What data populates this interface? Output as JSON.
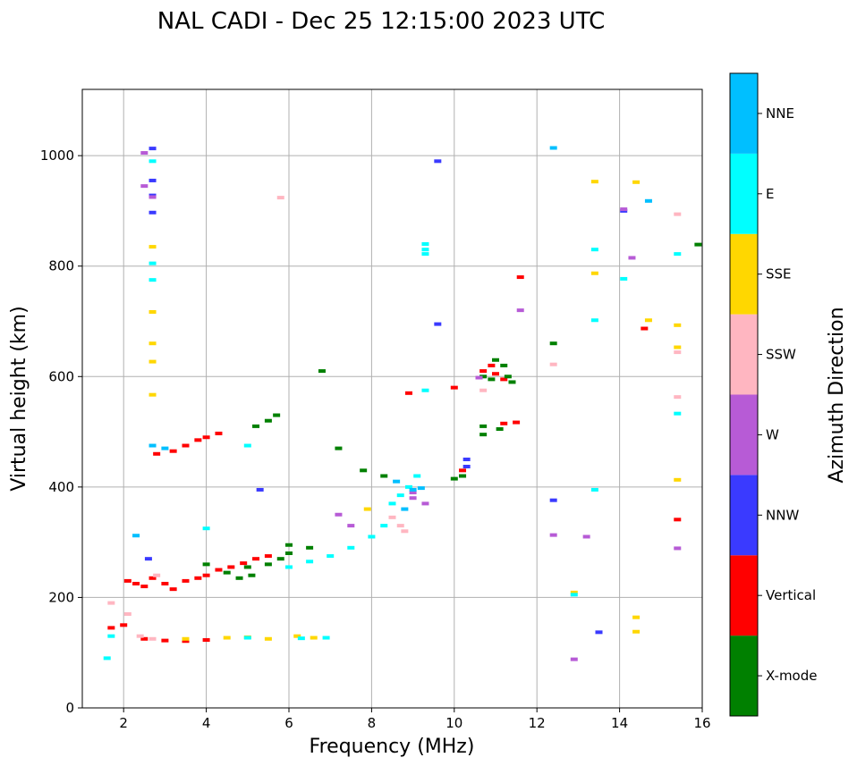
{
  "chart_data": {
    "type": "scatter",
    "title": "NAL CADI - Dec 25 12:15:00 2023 UTC",
    "xlabel": "Frequency (MHz)",
    "ylabel": "Virtual height (km)",
    "xlim": [
      1,
      16
    ],
    "ylim": [
      0,
      1120
    ],
    "xticks": [
      2,
      4,
      6,
      8,
      10,
      12,
      14,
      16
    ],
    "yticks": [
      0,
      200,
      400,
      600,
      800,
      1000
    ],
    "grid": true,
    "colorbar": {
      "label": "Azimuth Direction",
      "categories": [
        {
          "name": "X-mode",
          "color": "#008000"
        },
        {
          "name": "Vertical",
          "color": "#ff0000"
        },
        {
          "name": "NNW",
          "color": "#3a3aff"
        },
        {
          "name": "W",
          "color": "#b75bd6"
        },
        {
          "name": "SSW",
          "color": "#ffb6c1"
        },
        {
          "name": "SSE",
          "color": "#ffd700"
        },
        {
          "name": "E",
          "color": "#00ffff"
        },
        {
          "name": "NNE",
          "color": "#00bfff"
        }
      ]
    },
    "series": [
      {
        "name": "Vertical",
        "points": [
          [
            2.1,
            230
          ],
          [
            2.3,
            225
          ],
          [
            2.5,
            220
          ],
          [
            2.7,
            235
          ],
          [
            3.0,
            225
          ],
          [
            3.2,
            215
          ],
          [
            3.5,
            230
          ],
          [
            3.8,
            235
          ],
          [
            4.0,
            240
          ],
          [
            4.3,
            250
          ],
          [
            4.6,
            255
          ],
          [
            4.9,
            262
          ],
          [
            5.2,
            270
          ],
          [
            5.5,
            275
          ],
          [
            2.8,
            460
          ],
          [
            3.2,
            465
          ],
          [
            3.5,
            475
          ],
          [
            3.8,
            485
          ],
          [
            4.0,
            490
          ],
          [
            4.3,
            497
          ],
          [
            1.7,
            145
          ],
          [
            2.0,
            150
          ],
          [
            2.5,
            125
          ],
          [
            3.0,
            122
          ],
          [
            3.5,
            121
          ],
          [
            4.0,
            123
          ],
          [
            8.9,
            570
          ],
          [
            10.2,
            430
          ],
          [
            10.2,
            420
          ],
          [
            10.7,
            610
          ],
          [
            10.9,
            620
          ],
          [
            11.0,
            605
          ],
          [
            11.2,
            595
          ],
          [
            11.2,
            515
          ],
          [
            11.5,
            517
          ],
          [
            11.6,
            780
          ],
          [
            14.6,
            687
          ],
          [
            15.4,
            341
          ],
          [
            10.0,
            580
          ]
        ]
      },
      {
        "name": "X-mode",
        "points": [
          [
            4.0,
            260
          ],
          [
            4.5,
            245
          ],
          [
            5.0,
            255
          ],
          [
            5.5,
            260
          ],
          [
            5.8,
            270
          ],
          [
            6.0,
            280
          ],
          [
            6.0,
            295
          ],
          [
            6.5,
            290
          ],
          [
            6.8,
            610
          ],
          [
            5.2,
            510
          ],
          [
            5.5,
            520
          ],
          [
            5.7,
            530
          ],
          [
            7.2,
            470
          ],
          [
            7.8,
            430
          ],
          [
            8.3,
            420
          ],
          [
            10.0,
            415
          ],
          [
            10.2,
            420
          ],
          [
            10.7,
            600
          ],
          [
            10.9,
            595
          ],
          [
            11.0,
            630
          ],
          [
            11.2,
            620
          ],
          [
            11.3,
            600
          ],
          [
            11.4,
            590
          ],
          [
            10.7,
            510
          ],
          [
            10.7,
            495
          ],
          [
            11.1,
            505
          ],
          [
            12.4,
            660
          ],
          [
            15.9,
            839
          ],
          [
            4.8,
            235
          ],
          [
            5.1,
            240
          ]
        ]
      },
      {
        "name": "NNW",
        "points": [
          [
            2.7,
            1013
          ],
          [
            2.7,
            955
          ],
          [
            2.7,
            928
          ],
          [
            2.7,
            897
          ],
          [
            9.6,
            990
          ],
          [
            9.6,
            695
          ],
          [
            10.3,
            450
          ],
          [
            10.3,
            437
          ],
          [
            12.4,
            376
          ],
          [
            13.5,
            137
          ],
          [
            14.1,
            900
          ],
          [
            5.3,
            395
          ],
          [
            2.6,
            270
          ]
        ]
      },
      {
        "name": "W",
        "points": [
          [
            2.5,
            1005
          ],
          [
            2.5,
            945
          ],
          [
            2.7,
            925
          ],
          [
            9.0,
            390
          ],
          [
            9.0,
            380
          ],
          [
            9.3,
            370
          ],
          [
            12.4,
            313
          ],
          [
            13.2,
            310
          ],
          [
            12.9,
            88
          ],
          [
            14.3,
            815
          ],
          [
            14.1,
            903
          ],
          [
            11.6,
            720
          ],
          [
            10.6,
            598
          ],
          [
            15.4,
            289
          ],
          [
            7.2,
            350
          ],
          [
            7.5,
            330
          ]
        ]
      },
      {
        "name": "SSW",
        "points": [
          [
            1.7,
            190
          ],
          [
            2.1,
            170
          ],
          [
            2.4,
            130
          ],
          [
            2.7,
            125
          ],
          [
            8.7,
            330
          ],
          [
            8.8,
            320
          ],
          [
            8.5,
            345
          ],
          [
            10.7,
            575
          ],
          [
            12.4,
            622
          ],
          [
            15.4,
            644
          ],
          [
            15.4,
            563
          ],
          [
            15.4,
            894
          ],
          [
            5.8,
            924
          ],
          [
            2.8,
            240
          ]
        ]
      },
      {
        "name": "SSE",
        "points": [
          [
            2.7,
            835
          ],
          [
            2.7,
            717
          ],
          [
            2.7,
            660
          ],
          [
            2.7,
            627
          ],
          [
            2.7,
            567
          ],
          [
            3.5,
            125
          ],
          [
            4.5,
            127
          ],
          [
            5.0,
            128
          ],
          [
            5.5,
            125
          ],
          [
            6.2,
            130
          ],
          [
            6.6,
            127
          ],
          [
            7.9,
            360
          ],
          [
            13.4,
            953
          ],
          [
            13.4,
            787
          ],
          [
            14.4,
            952
          ],
          [
            14.4,
            164
          ],
          [
            14.4,
            138
          ],
          [
            14.7,
            702
          ],
          [
            15.4,
            693
          ],
          [
            15.4,
            653
          ],
          [
            15.4,
            413
          ],
          [
            12.9,
            209
          ]
        ]
      },
      {
        "name": "E",
        "points": [
          [
            1.6,
            90
          ],
          [
            1.7,
            130
          ],
          [
            2.7,
            990
          ],
          [
            2.7,
            775
          ],
          [
            2.7,
            805
          ],
          [
            4.0,
            325
          ],
          [
            5.0,
            475
          ],
          [
            6.0,
            255
          ],
          [
            6.5,
            265
          ],
          [
            7.0,
            275
          ],
          [
            7.5,
            290
          ],
          [
            8.0,
            310
          ],
          [
            8.3,
            330
          ],
          [
            8.5,
            370
          ],
          [
            8.7,
            385
          ],
          [
            8.9,
            400
          ],
          [
            9.1,
            420
          ],
          [
            9.3,
            575
          ],
          [
            9.3,
            840
          ],
          [
            9.3,
            830
          ],
          [
            9.3,
            822
          ],
          [
            13.4,
            830
          ],
          [
            13.4,
            702
          ],
          [
            13.4,
            395
          ],
          [
            14.1,
            777
          ],
          [
            15.4,
            822
          ],
          [
            15.4,
            533
          ],
          [
            12.9,
            205
          ],
          [
            5.0,
            127
          ],
          [
            6.3,
            126
          ],
          [
            6.9,
            127
          ]
        ]
      },
      {
        "name": "NNE",
        "points": [
          [
            2.3,
            312
          ],
          [
            2.7,
            475
          ],
          [
            3.0,
            470
          ],
          [
            12.4,
            1014
          ],
          [
            14.7,
            918
          ],
          [
            8.6,
            410
          ],
          [
            8.8,
            360
          ],
          [
            9.0,
            395
          ],
          [
            9.2,
            398
          ]
        ]
      }
    ]
  }
}
